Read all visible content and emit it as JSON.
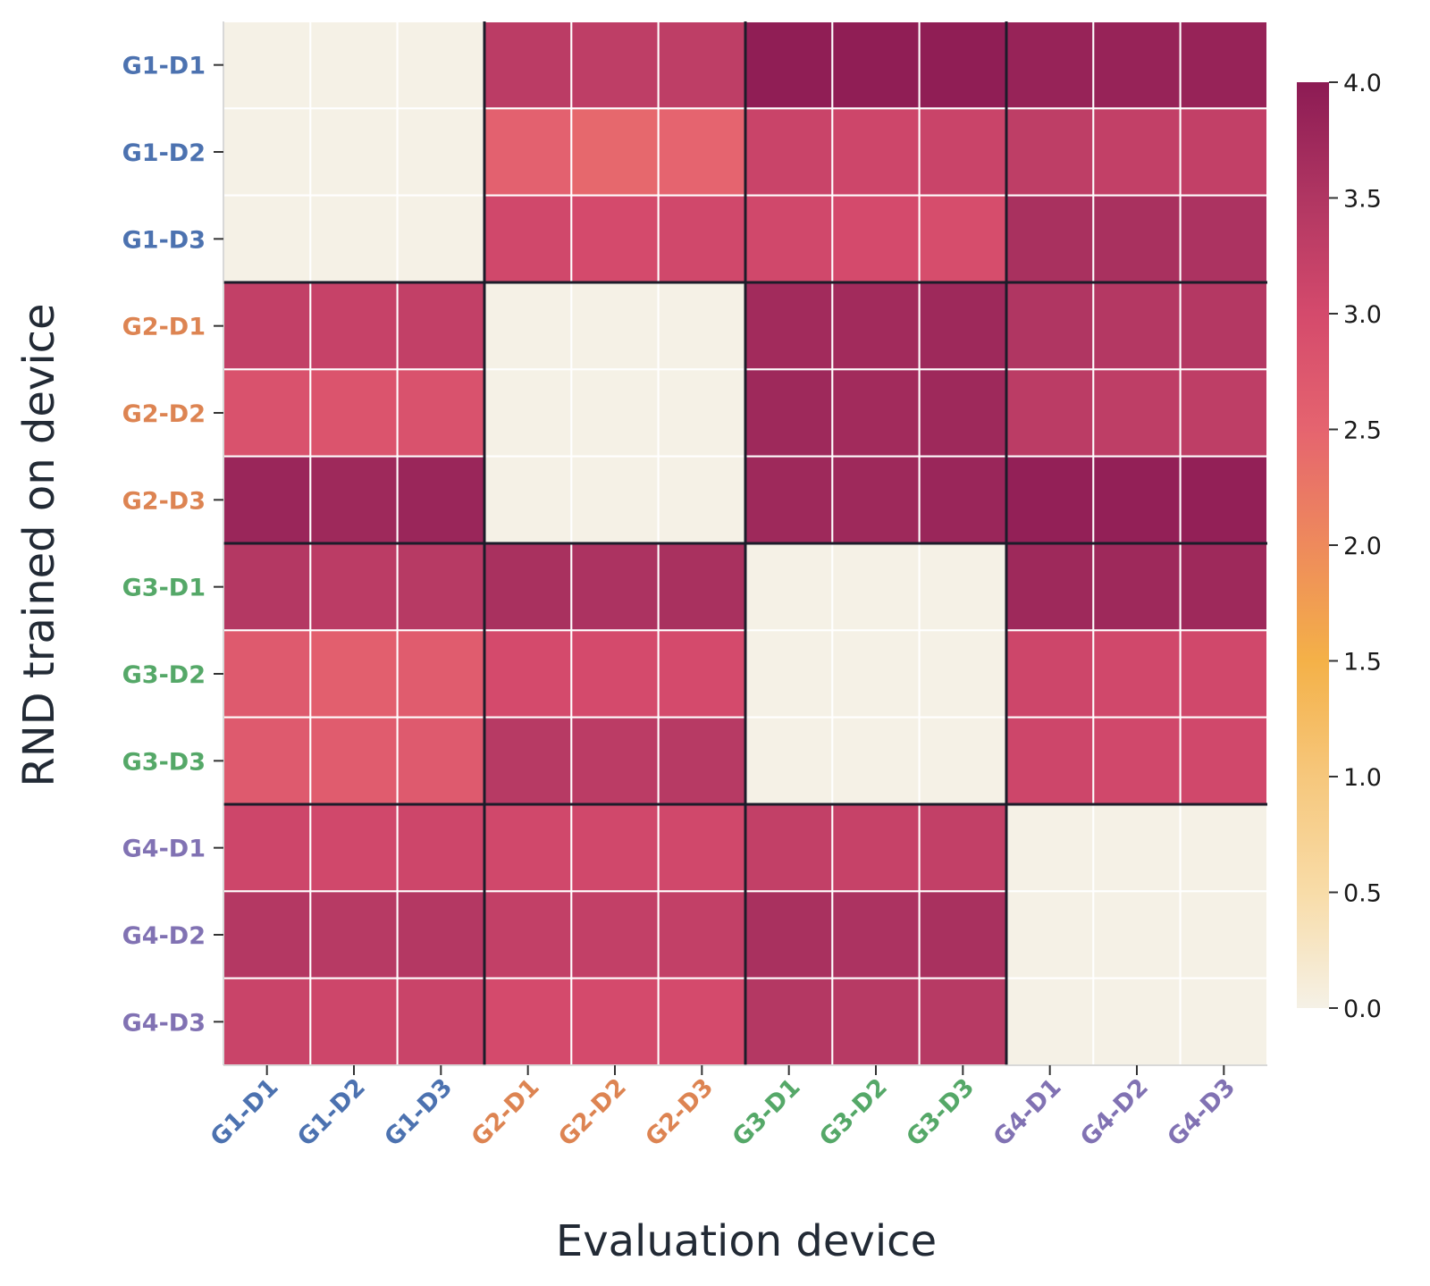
{
  "chart_data": {
    "type": "heatmap",
    "xlabel": "Evaluation device",
    "ylabel": "RND trained on device",
    "x_categories": [
      "G1-D1",
      "G1-D2",
      "G1-D3",
      "G2-D1",
      "G2-D2",
      "G2-D3",
      "G3-D1",
      "G3-D2",
      "G3-D3",
      "G4-D1",
      "G4-D2",
      "G4-D3"
    ],
    "y_categories": [
      "G1-D1",
      "G1-D2",
      "G1-D3",
      "G2-D1",
      "G2-D2",
      "G2-D3",
      "G3-D1",
      "G3-D2",
      "G3-D3",
      "G4-D1",
      "G4-D2",
      "G4-D3"
    ],
    "group_colors": [
      "#4c72b0",
      "#dd8452",
      "#55a868",
      "#8172b3"
    ],
    "values": [
      [
        0,
        0,
        0,
        3.35,
        3.3,
        3.3,
        3.95,
        3.95,
        3.95,
        3.85,
        3.85,
        3.85
      ],
      [
        0,
        0,
        0,
        2.55,
        2.45,
        2.5,
        3.15,
        3.1,
        3.15,
        3.3,
        3.25,
        3.25
      ],
      [
        0,
        0,
        0,
        3.05,
        3.0,
        3.05,
        3.05,
        3.0,
        2.95,
        3.6,
        3.6,
        3.55
      ],
      [
        3.25,
        3.2,
        3.25,
        0,
        0,
        0,
        3.7,
        3.7,
        3.75,
        3.5,
        3.45,
        3.45
      ],
      [
        2.85,
        2.8,
        2.85,
        0,
        0,
        0,
        3.75,
        3.7,
        3.75,
        3.35,
        3.3,
        3.3
      ],
      [
        3.8,
        3.75,
        3.8,
        0,
        0,
        0,
        3.75,
        3.75,
        3.8,
        3.9,
        3.9,
        3.9
      ],
      [
        3.45,
        3.35,
        3.4,
        3.6,
        3.55,
        3.6,
        0,
        0,
        0,
        3.75,
        3.75,
        3.75
      ],
      [
        2.7,
        2.6,
        2.65,
        3.0,
        3.0,
        3.0,
        0,
        0,
        0,
        3.1,
        3.05,
        3.05
      ],
      [
        2.7,
        2.65,
        2.7,
        3.4,
        3.35,
        3.4,
        0,
        0,
        0,
        3.1,
        3.05,
        3.05
      ],
      [
        3.1,
        3.05,
        3.1,
        3.05,
        3.05,
        3.05,
        3.25,
        3.2,
        3.25,
        0,
        0,
        0
      ],
      [
        3.45,
        3.4,
        3.45,
        3.25,
        3.25,
        3.25,
        3.6,
        3.55,
        3.6,
        0,
        0,
        0
      ],
      [
        3.15,
        3.1,
        3.15,
        3.0,
        3.0,
        3.0,
        3.45,
        3.4,
        3.4,
        0,
        0,
        0
      ]
    ],
    "colorbar": {
      "range": [
        0,
        4.0
      ],
      "ticks": [
        "0.0",
        "0.5",
        "1.0",
        "1.5",
        "2.0",
        "2.5",
        "3.0",
        "3.5",
        "4.0"
      ],
      "colormap": [
        [
          0.0,
          "#f5f1e6"
        ],
        [
          0.5,
          "#f8dca8"
        ],
        [
          1.0,
          "#f6c77c"
        ],
        [
          1.5,
          "#f4b148"
        ],
        [
          2.0,
          "#ee8a5c"
        ],
        [
          2.5,
          "#e5646f"
        ],
        [
          3.0,
          "#d44a6c"
        ],
        [
          3.5,
          "#b03662"
        ],
        [
          4.0,
          "#8c1b54"
        ]
      ]
    }
  }
}
